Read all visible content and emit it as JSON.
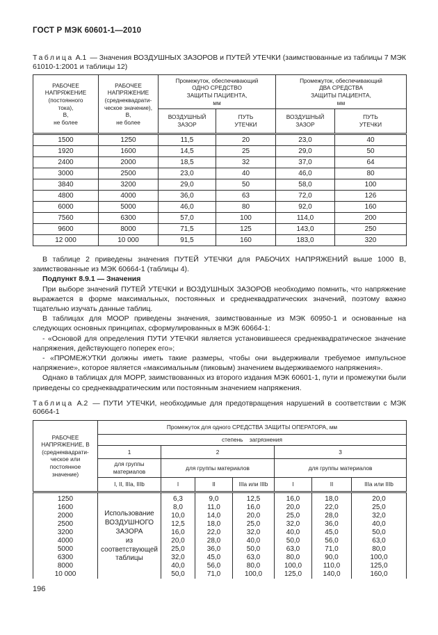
{
  "page": {
    "header": "ГОСТ Р МЭК 60601-1—2010",
    "page_number": "196"
  },
  "table_a1": {
    "caption_label": "Таблица",
    "caption_num": "А.1",
    "caption_rest": "— Значения ВОЗДУШНЫХ ЗАЗОРОВ и ПУТЕЙ УТЕЧКИ (заимствованные из таблицы 7 МЭК 61010-1:2001 и таблицы 12)",
    "headers": {
      "col1": "РАБОЧЕЕ\nНАПРЯЖЕНИЕ\n(постоянного\nтока),\nВ,\nне более",
      "col2": "РАБОЧЕЕ\nНАПРЯЖЕНИЕ\n(среднеквадрати-\nческое значение),\nВ,\nне более",
      "group_one": "Промежуток, обеспечивающий\nОДНО СРЕДСТВО\nЗАЩИТЫ ПАЦИЕНТА,\nмм",
      "group_two": "Промежуток, обеспечивающий\nДВА СРЕДСТВА\nЗАЩИТЫ ПАЦИЕНТА,\nмм",
      "sub": [
        "ВОЗДУШНЫЙ\nЗАЗОР",
        "ПУТЬ\nУТЕЧКИ",
        "ВОЗДУШНЫЙ\nЗАЗОР",
        "ПУТЬ\nУТЕЧКИ"
      ]
    },
    "rows": [
      [
        "1500",
        "1250",
        "11,5",
        "20",
        "23,0",
        "40"
      ],
      [
        "1920",
        "1600",
        "14,5",
        "25",
        "29,0",
        "50"
      ],
      [
        "2400",
        "2000",
        "18,5",
        "32",
        "37,0",
        "64"
      ],
      [
        "3000",
        "2500",
        "23,0",
        "40",
        "46,0",
        "80"
      ],
      [
        "3840",
        "3200",
        "29,0",
        "50",
        "58,0",
        "100"
      ],
      [
        "4800",
        "4000",
        "36,0",
        "63",
        "72,0",
        "126"
      ],
      [
        "6000",
        "5000",
        "46,0",
        "80",
        "92,0",
        "160"
      ],
      [
        "7560",
        "6300",
        "57,0",
        "100",
        "114,0",
        "200"
      ],
      [
        "9600",
        "8000",
        "71,5",
        "125",
        "143,0",
        "250"
      ],
      [
        "12 000",
        "10 000",
        "91,5",
        "160",
        "183,0",
        "320"
      ]
    ]
  },
  "body": {
    "p1": "В таблице 2 приведены значения ПУТЕЙ УТЕЧКИ для РАБОЧИХ НАПРЯЖЕНИЙ выше 1000 В, заимствованные из МЭК 60664-1 (таблицы 4).",
    "p2": "Подпункт 8.9.1 — Значения",
    "p3": "При выборе значений ПУТЕЙ УТЕЧКИ и ВОЗДУШНЫХ ЗАЗОРОВ необходимо помнить, что напряжение выражается в форме максимальных, постоянных и среднеквадратических значений, поэтому важно тщательно изучать данные таблиц.",
    "p4": "В таблицах для MOOP приведены значения, заимствованные из МЭК 60950-1 и основанные на следующих основных принципах, сформулированных в МЭК 60664-1:",
    "p5": "- «Основой для определения ПУТИ УТЕЧКИ является установившееся среднеквадратическое значение напряжения, действующего поперек его»;",
    "p6": "- «ПРОМЕЖУТКИ должны иметь такие размеры, чтобы они выдерживали требуемое импульсное напряжение», которое является «максимальным (пиковым) значением выдерживаемого напряжения».",
    "p7": "Однако в таблицах для MOPP, заимствованных из второго издания МЭК 60601-1, пути и промежутки были приведены со среднеквадратическим или постоянным значением напряжения."
  },
  "table_a2": {
    "caption_label": "Таблица",
    "caption_num": "А.2",
    "caption_rest": "— ПУТИ УТЕЧКИ, необходимые для предотвращения нарушений в соответствии с МЭК 60664-1",
    "headers": {
      "col1": "РАБОЧЕЕ\nНАПРЯЖЕНИЕ, В\n(среднеквадрати-\nческое или\nпостоянное\nзначение)",
      "group": "Промежуток для одного СРЕДСТВА ЗАЩИТЫ ОПЕРАТОРА, мм",
      "pollution": "степень загрязнения",
      "degrees": [
        "1",
        "2",
        "3"
      ],
      "materials": [
        "для группы\nматериалов",
        "для группы материалов",
        "для группы материалов"
      ],
      "material_groups": [
        "I, II, IIIa, IIIb",
        "I",
        "II",
        "IIIa или IIIb",
        "I",
        "II",
        "IIIa или IIIb"
      ]
    },
    "air_gap_note": "Использование\nВОЗДУШНОГО\nЗАЗОРА\nиз\nсоответствующей\nтаблицы",
    "rows": [
      [
        "1250",
        "6,3",
        "9,0",
        "12,5",
        "16,0",
        "18,0",
        "20,0"
      ],
      [
        "1600",
        "8,0",
        "11,0",
        "16,0",
        "20,0",
        "22,0",
        "25,0"
      ],
      [
        "2000",
        "10,0",
        "14,0",
        "20,0",
        "25,0",
        "28,0",
        "32,0"
      ],
      [
        "2500",
        "12,5",
        "18,0",
        "25,0",
        "32,0",
        "36,0",
        "40,0"
      ],
      [
        "3200",
        "16,0",
        "22,0",
        "32,0",
        "40,0",
        "45,0",
        "50,0"
      ],
      [
        "4000",
        "20,0",
        "28,0",
        "40,0",
        "50,0",
        "56,0",
        "63,0"
      ],
      [
        "5000",
        "25,0",
        "36,0",
        "50,0",
        "63,0",
        "71,0",
        "80,0"
      ],
      [
        "6300",
        "32,0",
        "45,0",
        "63,0",
        "80,0",
        "90,0",
        "100,0"
      ],
      [
        "8000",
        "40,0",
        "56,0",
        "80,0",
        "100,0",
        "110,0",
        "125,0"
      ],
      [
        "10 000",
        "50,0",
        "71,0",
        "100,0",
        "125,0",
        "140,0",
        "160,0"
      ]
    ]
  }
}
